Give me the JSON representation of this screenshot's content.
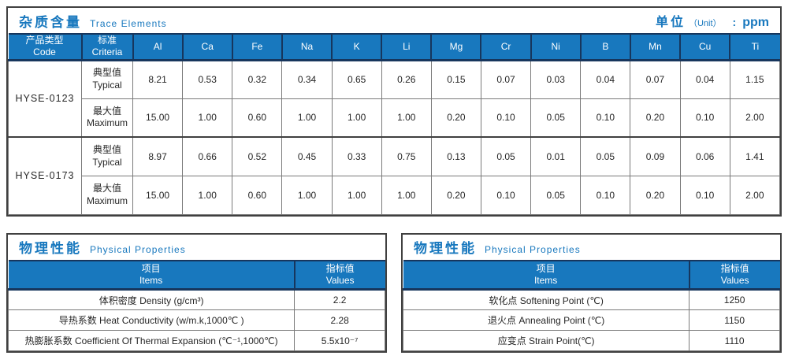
{
  "colors": {
    "header_blue": "#1878BE",
    "navy_line": "#17365D",
    "thick_border": "#404040",
    "thin_border": "#7A7A7A",
    "title_blue": "#1878BE",
    "text": "#262626"
  },
  "trace_table": {
    "title_zh": "杂质含量",
    "title_en": "Trace Elements",
    "unit_label_zh": "单位",
    "unit_paren": "（Unit）",
    "unit_colon": ":",
    "unit_value": "ppm",
    "col_code_zh": "产品类型",
    "col_code_en": "Code",
    "col_criteria_zh": "标准",
    "col_criteria_en": "Criteria",
    "elements": [
      "Al",
      "Ca",
      "Fe",
      "Na",
      "K",
      "Li",
      "Mg",
      "Cr",
      "Ni",
      "B",
      "Mn",
      "Cu",
      "Ti"
    ],
    "products": [
      {
        "code": "HYSE-0123",
        "rows": [
          {
            "label_zh": "典型值",
            "label_en": "Typical",
            "values": [
              "8.21",
              "0.53",
              "0.32",
              "0.34",
              "0.65",
              "0.26",
              "0.15",
              "0.07",
              "0.03",
              "0.04",
              "0.07",
              "0.04",
              "1.15"
            ]
          },
          {
            "label_zh": "最大值",
            "label_en": "Maximum",
            "values": [
              "15.00",
              "1.00",
              "0.60",
              "1.00",
              "1.00",
              "1.00",
              "0.20",
              "0.10",
              "0.05",
              "0.10",
              "0.20",
              "0.10",
              "2.00"
            ]
          }
        ]
      },
      {
        "code": "HYSE-0173",
        "rows": [
          {
            "label_zh": "典型值",
            "label_en": "Typical",
            "values": [
              "8.97",
              "0.66",
              "0.52",
              "0.45",
              "0.33",
              "0.75",
              "0.13",
              "0.05",
              "0.01",
              "0.05",
              "0.09",
              "0.06",
              "1.41"
            ]
          },
          {
            "label_zh": "最大值",
            "label_en": "Maximum",
            "values": [
              "15.00",
              "1.00",
              "0.60",
              "1.00",
              "1.00",
              "1.00",
              "0.20",
              "0.10",
              "0.05",
              "0.10",
              "0.20",
              "0.10",
              "2.00"
            ]
          }
        ]
      }
    ]
  },
  "physical_left": {
    "title_zh": "物理性能",
    "title_en": "Physical Properties",
    "col_item_zh": "项目",
    "col_item_en": "Items",
    "col_value_zh": "指标值",
    "col_value_en": "Values",
    "rows": [
      {
        "item": "体积密度 Density (g/cm³)",
        "value": "2.2"
      },
      {
        "item": "导热系数 Heat Conductivity (w/m.k,1000℃ )",
        "value": "2.28"
      },
      {
        "item": "热膨胀系数 Coefficient Of Thermal Expansion (℃⁻¹,1000℃)",
        "value": "5.5x10⁻⁷"
      }
    ]
  },
  "physical_right": {
    "title_zh": "物理性能",
    "title_en": "Physical Properties",
    "col_item_zh": "项目",
    "col_item_en": "Items",
    "col_value_zh": "指标值",
    "col_value_en": "Values",
    "rows": [
      {
        "item": "软化点 Softening Point (℃)",
        "value": "1250"
      },
      {
        "item": "退火点 Annealing Point (℃)",
        "value": "1150"
      },
      {
        "item": "应变点 Strain Point(℃)",
        "value": "1110"
      }
    ]
  }
}
